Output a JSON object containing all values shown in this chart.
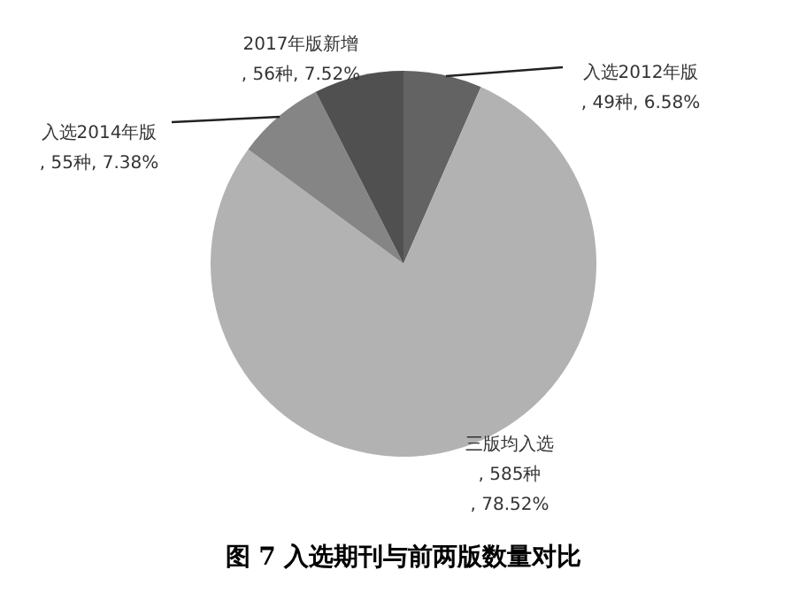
{
  "chart_data": {
    "type": "pie",
    "title": "图 7 入选期刊与前两版数量对比",
    "categories": [
      "入选2012年版",
      "三版均入选",
      "入选2014年版",
      "2017年版新增"
    ],
    "values": [
      49,
      585,
      55,
      56
    ],
    "colors": [
      "#636363",
      "#b2b2b2",
      "#858585",
      "#505050"
    ],
    "value_labels": [
      ", 49种, 6.58%",
      ", 585种\n, 78.52%",
      ", 55种, 7.38%",
      ", 56种, 7.52%"
    ]
  }
}
